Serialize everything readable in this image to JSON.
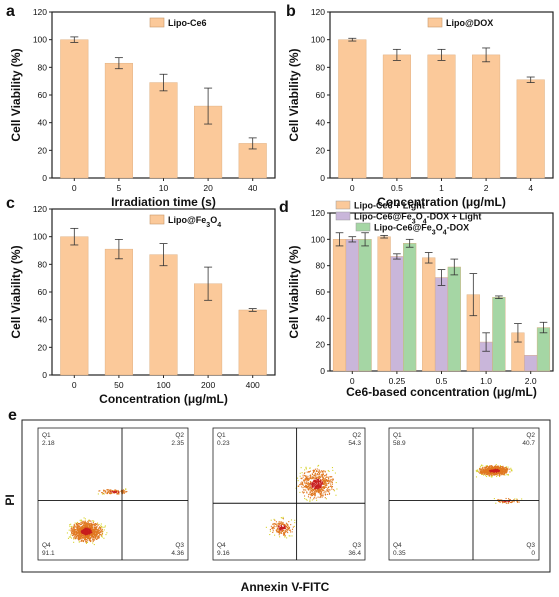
{
  "colors": {
    "orange": "#FBC99A",
    "purple": "#C9B6DA",
    "green": "#A5D6A4",
    "axis": "#222222"
  },
  "chart_data": [
    {
      "panel": "a",
      "type": "bar",
      "xlabel": "Irradiation time (s)",
      "ylabel": "Cell Viability (%)",
      "ylim": [
        0,
        120
      ],
      "yticks": [
        0,
        20,
        40,
        60,
        80,
        100,
        120
      ],
      "categories": [
        "0",
        "5",
        "10",
        "20",
        "40"
      ],
      "series": [
        {
          "name": "Lipo-Ce6",
          "color": "orange",
          "values": [
            100,
            83,
            69,
            52,
            25
          ],
          "errors": [
            2,
            4,
            6,
            13,
            4
          ]
        }
      ],
      "legend": "top-right"
    },
    {
      "panel": "b",
      "type": "bar",
      "xlabel": "Concentration (μg/mL)",
      "ylabel": "Cell Viability (%)",
      "ylim": [
        0,
        120
      ],
      "yticks": [
        0,
        20,
        40,
        60,
        80,
        100,
        120
      ],
      "categories": [
        "0",
        "0.5",
        "1",
        "2",
        "4"
      ],
      "series": [
        {
          "name": "Lipo@DOX",
          "color": "orange",
          "values": [
            100,
            89,
            89,
            89,
            71
          ],
          "errors": [
            1,
            4,
            4,
            5,
            2
          ]
        }
      ],
      "legend": "top-right"
    },
    {
      "panel": "c",
      "type": "bar",
      "xlabel": "Concentration (μg/mL)",
      "ylabel": "Cell Viability (%)",
      "ylim": [
        0,
        120
      ],
      "yticks": [
        0,
        20,
        40,
        60,
        80,
        100,
        120
      ],
      "categories": [
        "0",
        "50",
        "100",
        "200",
        "400"
      ],
      "series": [
        {
          "name": "Lipo@Fe3O4",
          "color": "orange",
          "values": [
            100,
            91,
            87,
            66,
            47
          ],
          "errors": [
            6,
            7,
            8,
            12,
            1
          ]
        }
      ],
      "legend": "top-right"
    },
    {
      "panel": "d",
      "type": "bar",
      "xlabel": "Ce6-based concentration (μg/mL)",
      "ylabel": "Cell Viability (%)",
      "ylim": [
        0,
        120
      ],
      "yticks": [
        0,
        20,
        40,
        60,
        80,
        100,
        120
      ],
      "categories": [
        "0",
        "0.25",
        "0.5",
        "1.0",
        "2.0"
      ],
      "series": [
        {
          "name": "Lipo-Ce6 + Light",
          "color": "orange",
          "values": [
            100,
            102,
            86,
            58,
            29
          ],
          "errors": [
            5,
            1,
            4,
            16,
            7
          ]
        },
        {
          "name": "Lipo-Ce6@Fe3O4-DOX + Light",
          "color": "purple",
          "values": [
            100,
            87,
            71,
            22,
            12
          ],
          "errors": [
            2,
            2,
            6,
            7,
            0
          ]
        },
        {
          "name": "Lipo-Ce6@Fe3O4-DOX",
          "color": "green",
          "values": [
            100,
            97,
            79,
            56,
            33
          ],
          "errors": [
            5,
            3,
            6,
            1,
            4
          ]
        }
      ],
      "legend": "top-left"
    },
    {
      "panel": "e",
      "type": "scatter",
      "xlabel": "Annexin V-FITC",
      "ylabel": "PI",
      "plots": [
        {
          "quadrants": {
            "Q1": "2.18",
            "Q2": "2.35",
            "Q3": "4.36",
            "Q4": "91.1"
          }
        },
        {
          "quadrants": {
            "Q1": "0.23",
            "Q2": "54.3",
            "Q3": "36.4",
            "Q4": "9.16"
          }
        },
        {
          "quadrants": {
            "Q1": "58.9",
            "Q2": "40.7",
            "Q3": "0",
            "Q4": "0.35"
          }
        }
      ]
    }
  ]
}
